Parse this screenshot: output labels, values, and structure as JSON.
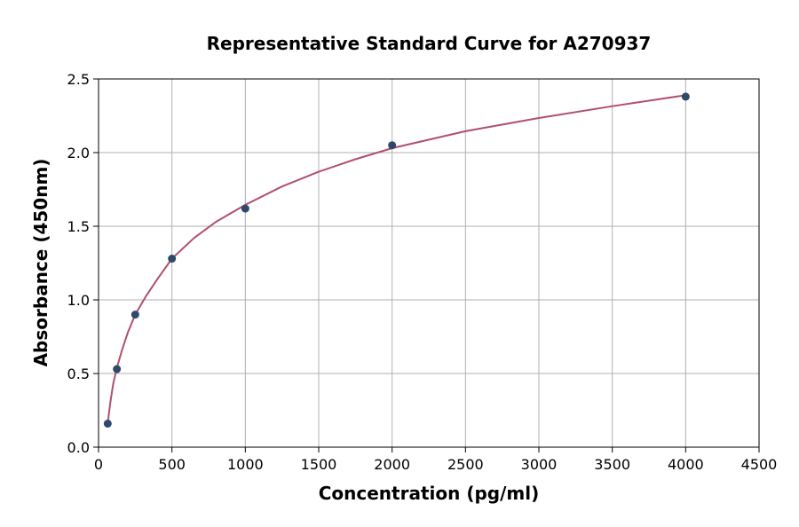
{
  "chart_data": {
    "type": "scatter",
    "title": "Representative Standard Curve for A270937",
    "xlabel": "Concentration (pg/ml)",
    "ylabel": "Absorbance (450nm)",
    "xlim": [
      0,
      4500
    ],
    "ylim": [
      0,
      2.5
    ],
    "xticks": [
      0,
      500,
      1000,
      1500,
      2000,
      2500,
      3000,
      3500,
      4000,
      4500
    ],
    "yticks": [
      0.0,
      0.5,
      1.0,
      1.5,
      2.0,
      2.5
    ],
    "xtick_labels": [
      "0",
      "500",
      "1000",
      "1500",
      "2000",
      "2500",
      "3000",
      "3500",
      "4000",
      "4500"
    ],
    "ytick_labels": [
      "0.0",
      "0.5",
      "1.0",
      "1.5",
      "2.0",
      "2.5"
    ],
    "grid": true,
    "series": [
      {
        "kind": "points",
        "color": "#2e4a6b",
        "x": [
          62.5,
          125,
          250,
          500,
          1000,
          2000,
          4000
        ],
        "y": [
          0.16,
          0.53,
          0.9,
          1.28,
          1.62,
          2.05,
          2.38
        ]
      },
      {
        "kind": "fit-curve",
        "color": "#b0506e",
        "x": [
          62.5,
          80,
          100,
          125,
          160,
          200,
          250,
          320,
          400,
          500,
          650,
          800,
          1000,
          1250,
          1500,
          1750,
          2000,
          2500,
          3000,
          3500,
          4000
        ],
        "y": [
          0.16,
          0.3,
          0.43,
          0.54,
          0.66,
          0.78,
          0.9,
          1.02,
          1.14,
          1.28,
          1.42,
          1.53,
          1.645,
          1.77,
          1.87,
          1.955,
          2.03,
          2.145,
          2.235,
          2.315,
          2.39
        ]
      }
    ]
  }
}
